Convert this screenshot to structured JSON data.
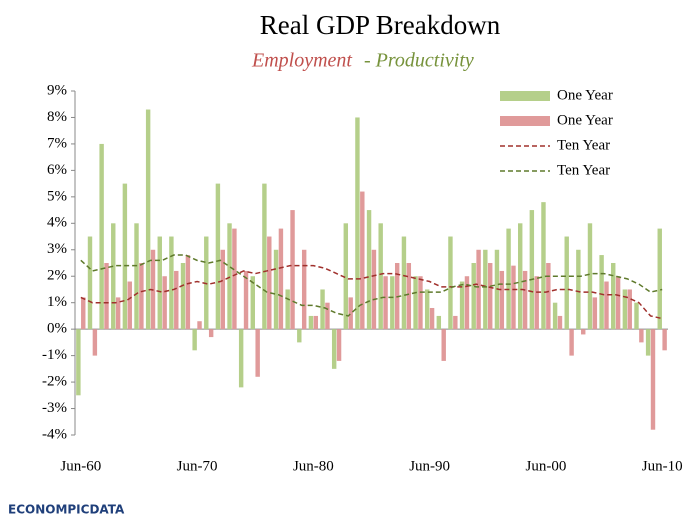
{
  "chart_data": {
    "type": "combo",
    "title": "Real GDP Breakdown",
    "subtitle_parts": [
      {
        "text": "Employment",
        "color": "#c0504d"
      },
      {
        "text": "- Productivity",
        "color": "#77933c"
      }
    ],
    "logo": "ECONOMPICDATA",
    "categories": [
      "Jun-60",
      null,
      null,
      null,
      null,
      null,
      null,
      null,
      null,
      null,
      "Jun-70",
      null,
      null,
      null,
      null,
      null,
      null,
      null,
      null,
      null,
      "Jun-80",
      null,
      null,
      null,
      null,
      null,
      null,
      null,
      null,
      null,
      "Jun-90",
      null,
      null,
      null,
      null,
      null,
      null,
      null,
      null,
      null,
      "Jun-00",
      null,
      null,
      null,
      null,
      null,
      null,
      null,
      null,
      null,
      "Jun-10"
    ],
    "ylim": [
      -4,
      9
    ],
    "yticks": [
      {
        "value": -4,
        "label": "-4%"
      },
      {
        "value": -3,
        "label": "-3%"
      },
      {
        "value": -2,
        "label": "-2%"
      },
      {
        "value": -1,
        "label": "-1%"
      },
      {
        "value": 0,
        "label": "0%"
      },
      {
        "value": 1,
        "label": "1%"
      },
      {
        "value": 2,
        "label": "2%"
      },
      {
        "value": 3,
        "label": "3%"
      },
      {
        "value": 4,
        "label": "4%"
      },
      {
        "value": 5,
        "label": "5%"
      },
      {
        "value": 6,
        "label": "6%"
      },
      {
        "value": 7,
        "label": "7%"
      },
      {
        "value": 8,
        "label": "8%"
      },
      {
        "value": 9,
        "label": "9%"
      }
    ],
    "grid": false,
    "legend": "top-right",
    "series": [
      {
        "name": "One Year",
        "type": "bar",
        "color": "#b5cf8a",
        "values": [
          -2.5,
          3.5,
          7.0,
          4.0,
          5.5,
          4.0,
          8.3,
          3.5,
          3.5,
          2.5,
          -0.8,
          3.5,
          5.5,
          4.0,
          -2.2,
          2.0,
          5.5,
          3.0,
          1.5,
          -0.5,
          0.5,
          1.5,
          -1.5,
          4.0,
          8.0,
          4.5,
          4.0,
          2.0,
          3.5,
          2.0,
          1.5,
          0.5,
          3.5,
          1.8,
          2.5,
          3.0,
          3.0,
          3.8,
          4.0,
          4.5,
          4.8,
          1.0,
          3.5,
          3.0,
          4.0,
          2.8,
          2.5,
          1.5,
          1.0,
          -1.0,
          3.8
        ]
      },
      {
        "name": "One Year",
        "type": "bar",
        "color": "#e09a9a",
        "values": [
          1.2,
          -1.0,
          2.5,
          1.2,
          1.8,
          2.5,
          3.0,
          2.0,
          2.2,
          2.8,
          0.3,
          -0.3,
          3.0,
          3.8,
          2.2,
          -1.8,
          3.5,
          3.8,
          4.5,
          3.0,
          0.5,
          1.0,
          -1.2,
          1.2,
          5.2,
          3.0,
          2.0,
          2.5,
          2.5,
          2.0,
          0.8,
          -1.2,
          0.5,
          2.0,
          3.0,
          2.5,
          2.2,
          2.4,
          2.2,
          2.0,
          2.5,
          0.5,
          -1.0,
          -0.2,
          1.2,
          1.8,
          2.0,
          1.5,
          -0.5,
          -3.8,
          -0.8
        ]
      },
      {
        "name": "Ten Year",
        "type": "line",
        "dash": true,
        "color": "#a0302c",
        "values": [
          1.2,
          1.0,
          1.0,
          1.0,
          1.1,
          1.4,
          1.5,
          1.4,
          1.5,
          1.7,
          1.8,
          1.7,
          1.8,
          2.0,
          2.2,
          2.1,
          2.2,
          2.3,
          2.4,
          2.4,
          2.4,
          2.3,
          2.1,
          1.9,
          1.9,
          2.0,
          2.1,
          2.1,
          2.0,
          1.9,
          1.8,
          1.6,
          1.6,
          1.6,
          1.7,
          1.6,
          1.5,
          1.5,
          1.5,
          1.4,
          1.4,
          1.5,
          1.5,
          1.4,
          1.4,
          1.3,
          1.3,
          1.2,
          1.0,
          0.5,
          0.4
        ]
      },
      {
        "name": "Ten Year",
        "type": "line",
        "dash": true,
        "color": "#5f7a2c",
        "values": [
          2.6,
          2.2,
          2.3,
          2.4,
          2.4,
          2.4,
          2.6,
          2.6,
          2.8,
          2.8,
          2.6,
          2.5,
          2.6,
          2.3,
          2.0,
          1.7,
          1.4,
          1.3,
          1.1,
          0.9,
          0.9,
          0.8,
          0.6,
          0.5,
          0.9,
          1.1,
          1.2,
          1.2,
          1.3,
          1.4,
          1.4,
          1.4,
          1.6,
          1.7,
          1.6,
          1.6,
          1.7,
          1.7,
          1.8,
          1.9,
          2.0,
          2.0,
          2.0,
          2.0,
          2.1,
          2.1,
          2.0,
          1.9,
          1.7,
          1.4,
          1.5
        ]
      }
    ]
  }
}
